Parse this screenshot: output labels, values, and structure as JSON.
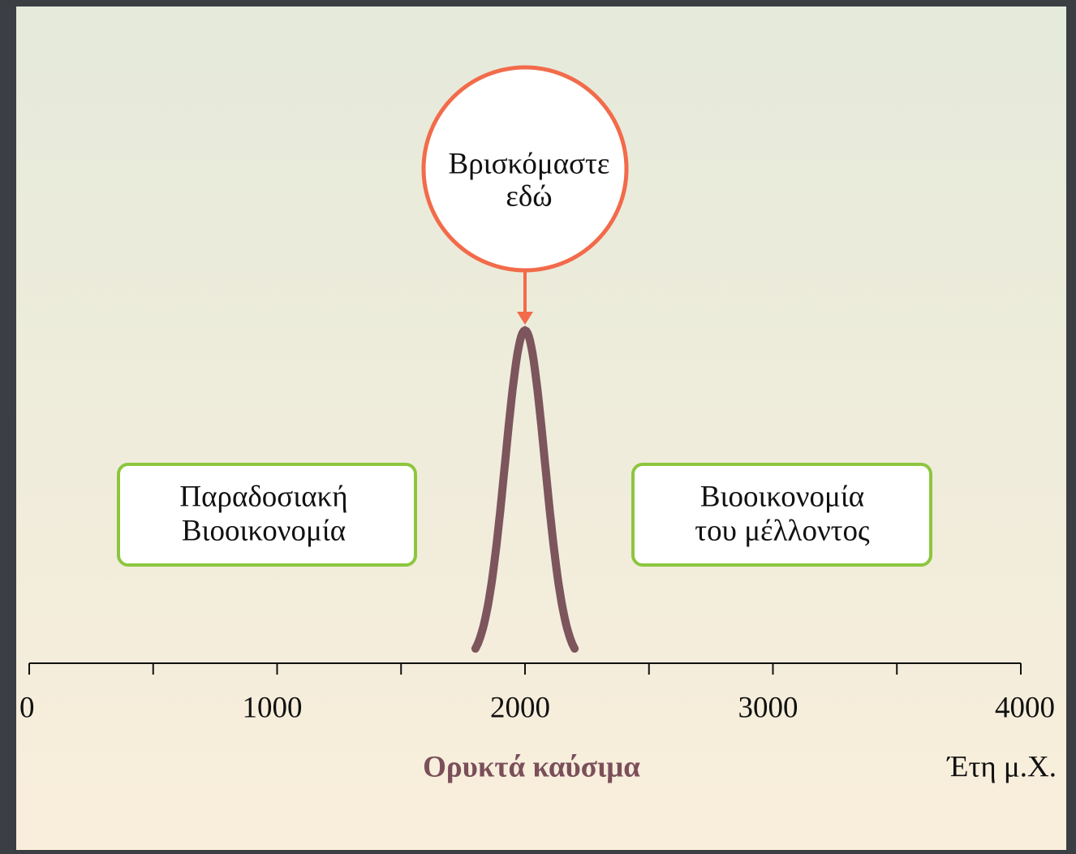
{
  "axis": {
    "xlim": [
      0,
      4000
    ],
    "xticks": [
      0,
      1000,
      2000,
      3000,
      4000
    ],
    "minor_ticks": [
      500,
      1500,
      2500,
      3500
    ],
    "unit_label": "Έτη μ.Χ."
  },
  "marker": {
    "lines": [
      "Βρισκόμαστε",
      "εδώ"
    ]
  },
  "curve": {
    "label": "Ορυκτά καύσιμα",
    "peak": 2000,
    "span": [
      1800,
      2200
    ]
  },
  "boxes": [
    {
      "lines": [
        "Παραδοσιακή",
        "Βιοοικονομία"
      ]
    },
    {
      "lines": [
        "Βιοοικονομία",
        "του μέλλοντος"
      ]
    }
  ]
}
